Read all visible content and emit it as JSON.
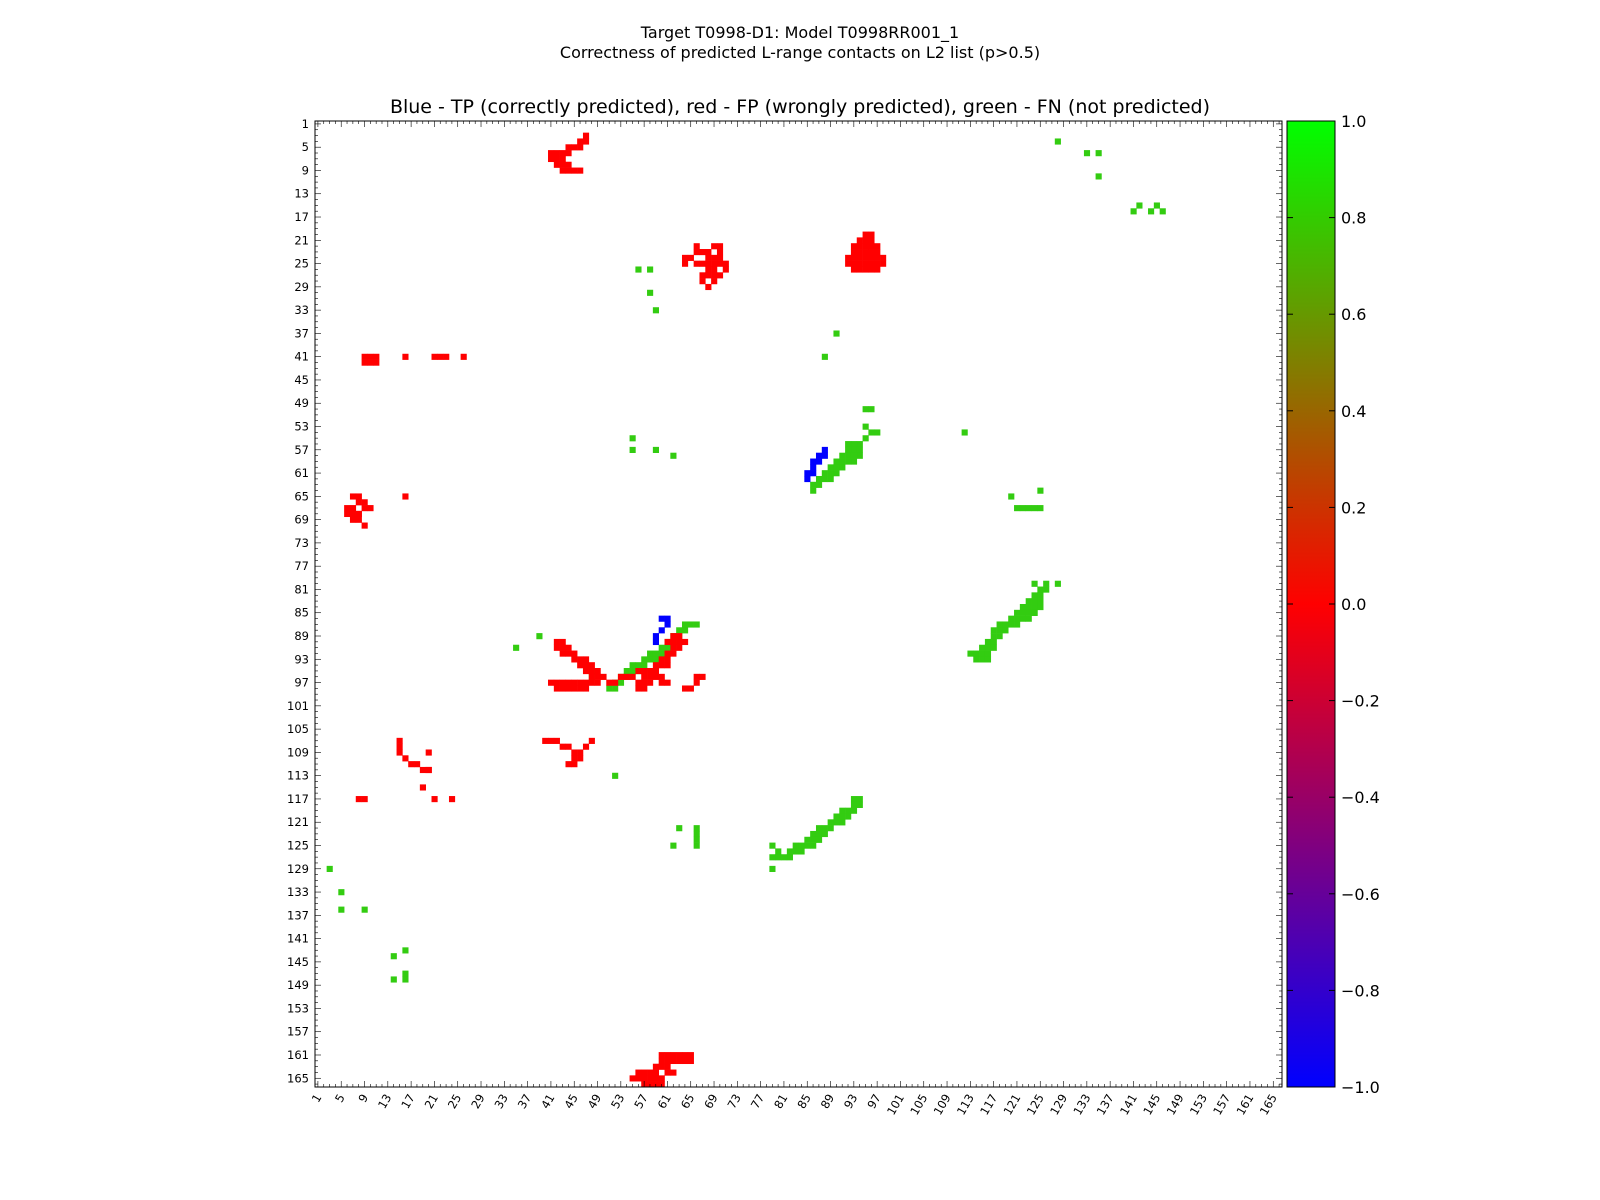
{
  "figure": {
    "title_line1": "Target T0998-D1: Model T0998RR001_1",
    "title_line2": "Correctness of predicted L-range contacts on L2 list (p>0.5)"
  },
  "colors": {
    "tp": "#0000ff",
    "fp": "#ff0000",
    "fn": "#33cc11",
    "background": "#ffffff",
    "colormap": [
      "#0000ff",
      "#ff0000",
      "#00ff00"
    ]
  },
  "chart_data": {
    "type": "heatmap",
    "title": "Blue - TP (correctly predicted), red - FP (wrongly predicted), green - FN (not predicted)",
    "n_residues": 166,
    "x_range": [
      1,
      166
    ],
    "y_range": [
      1,
      166
    ],
    "y_inverted": true,
    "tick_labels": [
      "1",
      "5",
      "9",
      "13",
      "17",
      "21",
      "25",
      "29",
      "33",
      "37",
      "41",
      "45",
      "49",
      "53",
      "57",
      "61",
      "65",
      "69",
      "73",
      "77",
      "81",
      "85",
      "89",
      "93",
      "97",
      "101",
      "105",
      "109",
      "113",
      "117",
      "121",
      "125",
      "129",
      "133",
      "137",
      "141",
      "145",
      "149",
      "153",
      "157",
      "161",
      "165"
    ],
    "colorbar": {
      "range": [
        -1.0,
        1.0
      ],
      "tick_labels": [
        "1.0",
        "0.8",
        "0.6",
        "0.4",
        "0.2",
        "0.0",
        "−0.2",
        "−0.4",
        "−0.6",
        "−0.8",
        "−1.0"
      ]
    },
    "legend": {
      "tp": "TP (correctly predicted)",
      "fp": "FP (wrongly predicted)",
      "fn": "FN (not predicted)"
    },
    "tp_contacts": [
      [
        60,
        86
      ],
      [
        61,
        86
      ],
      [
        61,
        87
      ],
      [
        60,
        88
      ],
      [
        59,
        89
      ],
      [
        59,
        90
      ],
      [
        88,
        57
      ],
      [
        88,
        58
      ],
      [
        87,
        58
      ],
      [
        87,
        59
      ],
      [
        86,
        59
      ],
      [
        86,
        60
      ],
      [
        85,
        61
      ],
      [
        85,
        62
      ],
      [
        86,
        61
      ]
    ],
    "fp_contacts": [
      [
        9,
        41
      ],
      [
        9,
        42
      ],
      [
        8,
        68
      ],
      [
        8,
        69
      ],
      [
        7,
        67
      ],
      [
        7,
        68
      ],
      [
        9,
        70
      ],
      [
        10,
        41
      ],
      [
        10,
        42
      ],
      [
        11,
        41
      ],
      [
        11,
        42
      ],
      [
        16,
        41
      ],
      [
        21,
        41
      ],
      [
        22,
        41
      ],
      [
        23,
        41
      ],
      [
        26,
        41
      ],
      [
        16,
        65
      ],
      [
        8,
        68
      ],
      [
        7,
        69
      ],
      [
        6,
        67
      ],
      [
        6,
        68
      ],
      [
        7,
        65
      ],
      [
        8,
        65
      ],
      [
        8,
        66
      ],
      [
        9,
        66
      ],
      [
        9,
        67
      ],
      [
        10,
        67
      ],
      [
        20,
        109
      ],
      [
        20,
        112
      ],
      [
        19,
        115
      ],
      [
        15,
        107
      ],
      [
        15,
        108
      ],
      [
        15,
        109
      ],
      [
        16,
        110
      ],
      [
        17,
        111
      ],
      [
        18,
        111
      ],
      [
        19,
        112
      ],
      [
        20,
        112
      ],
      [
        8,
        117
      ],
      [
        9,
        117
      ],
      [
        21,
        117
      ],
      [
        24,
        117
      ],
      [
        40,
        107
      ],
      [
        41,
        107
      ],
      [
        42,
        107
      ],
      [
        43,
        108
      ],
      [
        44,
        108
      ],
      [
        45,
        109
      ],
      [
        46,
        109
      ],
      [
        47,
        108
      ],
      [
        48,
        107
      ],
      [
        45,
        110
      ],
      [
        46,
        110
      ],
      [
        44,
        111
      ],
      [
        45,
        111
      ],
      [
        41,
        6
      ],
      [
        41,
        7
      ],
      [
        42,
        6
      ],
      [
        42,
        7
      ],
      [
        43,
        6
      ],
      [
        43,
        7
      ],
      [
        44,
        6
      ],
      [
        45,
        5
      ],
      [
        44,
        5
      ],
      [
        46,
        4
      ],
      [
        47,
        3
      ],
      [
        47,
        4
      ],
      [
        46,
        5
      ],
      [
        43,
        8
      ],
      [
        44,
        8
      ],
      [
        42,
        8
      ],
      [
        43,
        9
      ],
      [
        44,
        9
      ],
      [
        45,
        9
      ],
      [
        46,
        9
      ],
      [
        68,
        26
      ],
      [
        69,
        26
      ],
      [
        68,
        27
      ],
      [
        69,
        27
      ],
      [
        67,
        27
      ],
      [
        67,
        28
      ],
      [
        70,
        27
      ],
      [
        71,
        26
      ],
      [
        68,
        29
      ],
      [
        69,
        28
      ],
      [
        69,
        22
      ],
      [
        70,
        22
      ],
      [
        70,
        23
      ],
      [
        66,
        22
      ],
      [
        67,
        23
      ],
      [
        66,
        23
      ],
      [
        65,
        24
      ],
      [
        64,
        24
      ],
      [
        64,
        25
      ],
      [
        66,
        25
      ],
      [
        67,
        25
      ],
      [
        68,
        25
      ],
      [
        69,
        25
      ],
      [
        70,
        24
      ],
      [
        68,
        24
      ],
      [
        68,
        23
      ],
      [
        70,
        25
      ],
      [
        71,
        25
      ],
      [
        69,
        24
      ],
      [
        95,
        20
      ],
      [
        96,
        20
      ],
      [
        93,
        22
      ],
      [
        94,
        22
      ],
      [
        94,
        23
      ],
      [
        96,
        25
      ],
      [
        97,
        26
      ],
      [
        96,
        24
      ],
      [
        97,
        25
      ],
      [
        95,
        24
      ],
      [
        95,
        25
      ],
      [
        93,
        23
      ],
      [
        96,
        23
      ],
      [
        95,
        23
      ],
      [
        94,
        24
      ],
      [
        93,
        24
      ],
      [
        92,
        24
      ],
      [
        94,
        25
      ],
      [
        95,
        26
      ],
      [
        96,
        26
      ],
      [
        97,
        24
      ],
      [
        98,
        24
      ],
      [
        93,
        26
      ],
      [
        94,
        26
      ],
      [
        93,
        25
      ],
      [
        95,
        21
      ],
      [
        96,
        21
      ],
      [
        95,
        22
      ],
      [
        96,
        22
      ],
      [
        97,
        22
      ],
      [
        97,
        23
      ],
      [
        92,
        25
      ],
      [
        98,
        25
      ],
      [
        94,
        21
      ],
      [
        42,
        90
      ],
      [
        43,
        90
      ],
      [
        42,
        91
      ],
      [
        43,
        91
      ],
      [
        44,
        91
      ],
      [
        44,
        92
      ],
      [
        45,
        92
      ],
      [
        43,
        92
      ],
      [
        45,
        93
      ],
      [
        46,
        93
      ],
      [
        47,
        93
      ],
      [
        46,
        94
      ],
      [
        47,
        94
      ],
      [
        48,
        94
      ],
      [
        47,
        95
      ],
      [
        48,
        95
      ],
      [
        49,
        95
      ],
      [
        48,
        96
      ],
      [
        49,
        96
      ],
      [
        50,
        96
      ],
      [
        41,
        97
      ],
      [
        42,
        97
      ],
      [
        43,
        97
      ],
      [
        44,
        97
      ],
      [
        45,
        97
      ],
      [
        46,
        97
      ],
      [
        47,
        97
      ],
      [
        48,
        97
      ],
      [
        42,
        98
      ],
      [
        43,
        98
      ],
      [
        44,
        98
      ],
      [
        45,
        98
      ],
      [
        46,
        98
      ],
      [
        47,
        98
      ],
      [
        49,
        97
      ],
      [
        51,
        97
      ],
      [
        52,
        97
      ],
      [
        53,
        96
      ],
      [
        54,
        96
      ],
      [
        55,
        96
      ],
      [
        56,
        95
      ],
      [
        57,
        95
      ],
      [
        58,
        95
      ],
      [
        59,
        95
      ],
      [
        59,
        94
      ],
      [
        60,
        94
      ],
      [
        61,
        94
      ],
      [
        60,
        93
      ],
      [
        61,
        93
      ],
      [
        61,
        92
      ],
      [
        62,
        92
      ],
      [
        62,
        91
      ],
      [
        63,
        91
      ],
      [
        63,
        90
      ],
      [
        64,
        90
      ],
      [
        62,
        89
      ],
      [
        63,
        89
      ],
      [
        61,
        90
      ],
      [
        62,
        90
      ],
      [
        56,
        97
      ],
      [
        57,
        97
      ],
      [
        58,
        97
      ],
      [
        57,
        96
      ],
      [
        58,
        96
      ],
      [
        59,
        96
      ],
      [
        60,
        96
      ],
      [
        56,
        98
      ],
      [
        57,
        98
      ],
      [
        60,
        97
      ],
      [
        61,
        97
      ],
      [
        66,
        97
      ],
      [
        67,
        96
      ],
      [
        66,
        96
      ],
      [
        64,
        98
      ],
      [
        65,
        98
      ],
      [
        55,
        165
      ],
      [
        56,
        165
      ],
      [
        57,
        165
      ],
      [
        58,
        165
      ],
      [
        56,
        164
      ],
      [
        57,
        164
      ],
      [
        58,
        164
      ],
      [
        59,
        164
      ],
      [
        59,
        163
      ],
      [
        60,
        163
      ],
      [
        61,
        163
      ],
      [
        60,
        162
      ],
      [
        61,
        162
      ],
      [
        62,
        162
      ],
      [
        61,
        161
      ],
      [
        62,
        161
      ],
      [
        63,
        161
      ],
      [
        60,
        161
      ],
      [
        59,
        165
      ],
      [
        60,
        165
      ],
      [
        61,
        164
      ],
      [
        62,
        164
      ],
      [
        58,
        166
      ],
      [
        59,
        166
      ],
      [
        60,
        166
      ],
      [
        57,
        166
      ],
      [
        63,
        162
      ],
      [
        64,
        162
      ],
      [
        65,
        162
      ],
      [
        64,
        161
      ],
      [
        65,
        161
      ]
    ],
    "fn_contacts": [
      [
        128,
        4
      ],
      [
        133,
        6
      ],
      [
        135,
        6
      ],
      [
        135,
        10
      ],
      [
        141,
        16
      ],
      [
        144,
        16
      ],
      [
        142,
        15
      ],
      [
        145,
        15
      ],
      [
        146,
        16
      ],
      [
        56,
        26
      ],
      [
        58,
        26
      ],
      [
        58,
        30
      ],
      [
        59,
        33
      ],
      [
        55,
        55
      ],
      [
        55,
        57
      ],
      [
        59,
        57
      ],
      [
        62,
        58
      ],
      [
        90,
        37
      ],
      [
        88,
        41
      ],
      [
        95,
        50
      ],
      [
        96,
        50
      ],
      [
        97,
        54
      ],
      [
        112,
        54
      ],
      [
        95,
        53
      ],
      [
        96,
        54
      ],
      [
        95,
        55
      ],
      [
        94,
        56
      ],
      [
        93,
        56
      ],
      [
        92,
        56
      ],
      [
        93,
        57
      ],
      [
        92,
        57
      ],
      [
        91,
        58
      ],
      [
        92,
        58
      ],
      [
        91,
        59
      ],
      [
        90,
        59
      ],
      [
        89,
        60
      ],
      [
        90,
        60
      ],
      [
        88,
        61
      ],
      [
        89,
        61
      ],
      [
        87,
        62
      ],
      [
        88,
        62
      ],
      [
        86,
        63
      ],
      [
        87,
        63
      ],
      [
        86,
        64
      ],
      [
        94,
        57
      ],
      [
        94,
        58
      ],
      [
        93,
        58
      ],
      [
        93,
        59
      ],
      [
        92,
        59
      ],
      [
        91,
        60
      ],
      [
        90,
        61
      ],
      [
        89,
        62
      ],
      [
        120,
        65
      ],
      [
        125,
        64
      ],
      [
        121,
        67
      ],
      [
        122,
        67
      ],
      [
        123,
        67
      ],
      [
        124,
        67
      ],
      [
        125,
        67
      ],
      [
        124,
        80
      ],
      [
        126,
        80
      ],
      [
        128,
        80
      ],
      [
        125,
        81
      ],
      [
        126,
        81
      ],
      [
        124,
        82
      ],
      [
        125,
        82
      ],
      [
        123,
        83
      ],
      [
        124,
        83
      ],
      [
        125,
        83
      ],
      [
        122,
        84
      ],
      [
        123,
        84
      ],
      [
        124,
        84
      ],
      [
        125,
        84
      ],
      [
        121,
        85
      ],
      [
        122,
        85
      ],
      [
        123,
        85
      ],
      [
        124,
        85
      ],
      [
        120,
        86
      ],
      [
        121,
        86
      ],
      [
        122,
        86
      ],
      [
        123,
        86
      ],
      [
        118,
        87
      ],
      [
        119,
        87
      ],
      [
        120,
        87
      ],
      [
        121,
        87
      ],
      [
        117,
        88
      ],
      [
        118,
        88
      ],
      [
        119,
        88
      ],
      [
        117,
        89
      ],
      [
        118,
        89
      ],
      [
        116,
        90
      ],
      [
        117,
        90
      ],
      [
        115,
        91
      ],
      [
        116,
        91
      ],
      [
        117,
        91
      ],
      [
        114,
        92
      ],
      [
        115,
        92
      ],
      [
        116,
        92
      ],
      [
        113,
        92
      ],
      [
        114,
        93
      ],
      [
        115,
        93
      ],
      [
        116,
        93
      ],
      [
        124,
        85
      ],
      [
        55,
        94
      ],
      [
        56,
        94
      ],
      [
        57,
        94
      ],
      [
        54,
        95
      ],
      [
        55,
        95
      ],
      [
        56,
        95
      ],
      [
        53,
        96
      ],
      [
        54,
        96
      ],
      [
        52,
        97
      ],
      [
        53,
        97
      ],
      [
        51,
        98
      ],
      [
        48,
        95
      ],
      [
        48,
        96
      ],
      [
        52,
        98
      ],
      [
        57,
        93
      ],
      [
        58,
        93
      ],
      [
        59,
        93
      ],
      [
        58,
        92
      ],
      [
        59,
        92
      ],
      [
        60,
        92
      ],
      [
        60,
        91
      ],
      [
        61,
        91
      ],
      [
        61,
        90
      ],
      [
        62,
        90
      ],
      [
        62,
        89
      ],
      [
        63,
        89
      ],
      [
        64,
        87
      ],
      [
        65,
        87
      ],
      [
        63,
        88
      ],
      [
        64,
        88
      ],
      [
        66,
        87
      ],
      [
        39,
        89
      ],
      [
        35,
        91
      ],
      [
        52,
        113
      ],
      [
        93,
        117
      ],
      [
        94,
        117
      ],
      [
        93,
        118
      ],
      [
        94,
        118
      ],
      [
        92,
        119
      ],
      [
        93,
        119
      ],
      [
        91,
        119
      ],
      [
        90,
        120
      ],
      [
        91,
        120
      ],
      [
        92,
        120
      ],
      [
        89,
        121
      ],
      [
        90,
        121
      ],
      [
        91,
        121
      ],
      [
        88,
        122
      ],
      [
        89,
        122
      ],
      [
        87,
        122
      ],
      [
        86,
        123
      ],
      [
        87,
        123
      ],
      [
        88,
        123
      ],
      [
        85,
        124
      ],
      [
        86,
        124
      ],
      [
        87,
        124
      ],
      [
        84,
        125
      ],
      [
        85,
        125
      ],
      [
        86,
        125
      ],
      [
        83,
        125
      ],
      [
        82,
        126
      ],
      [
        83,
        126
      ],
      [
        84,
        126
      ],
      [
        82,
        127
      ],
      [
        81,
        127
      ],
      [
        80,
        126
      ],
      [
        79,
        127
      ],
      [
        80,
        127
      ],
      [
        79,
        125
      ],
      [
        79,
        129
      ],
      [
        62,
        125
      ],
      [
        63,
        122
      ],
      [
        66,
        122
      ],
      [
        66,
        123
      ],
      [
        66,
        124
      ],
      [
        66,
        125
      ],
      [
        3,
        129
      ],
      [
        5,
        133
      ],
      [
        5,
        136
      ],
      [
        9,
        136
      ],
      [
        16,
        143
      ],
      [
        14,
        144
      ],
      [
        14,
        148
      ],
      [
        16,
        147
      ],
      [
        16,
        148
      ]
    ]
  }
}
